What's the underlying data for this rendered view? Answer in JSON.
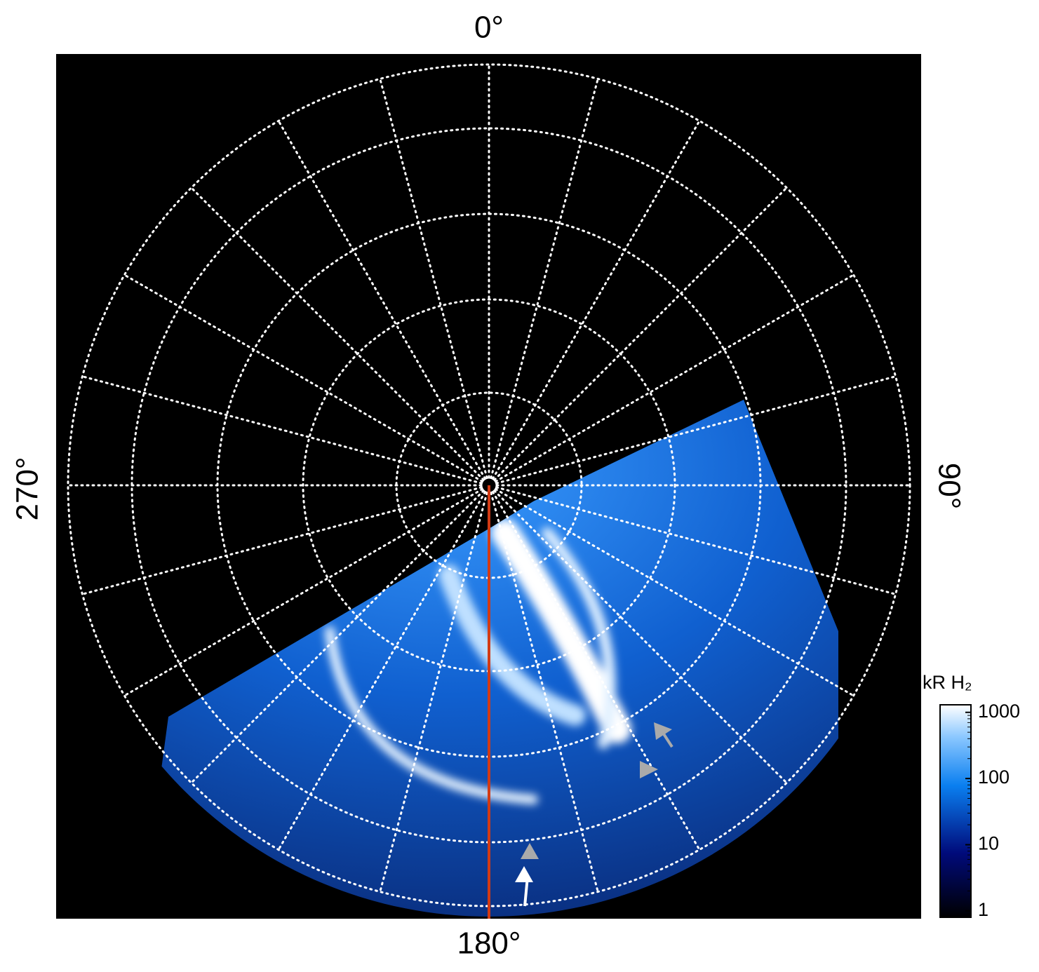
{
  "labels": {
    "top": "0°",
    "right": "90°",
    "bottom": "180°",
    "left": "270°"
  },
  "colorbar": {
    "title": "kR H₂",
    "log": true,
    "lim": [
      0.8,
      1300
    ],
    "ticks": [
      1,
      10,
      100,
      1000
    ]
  }
}
